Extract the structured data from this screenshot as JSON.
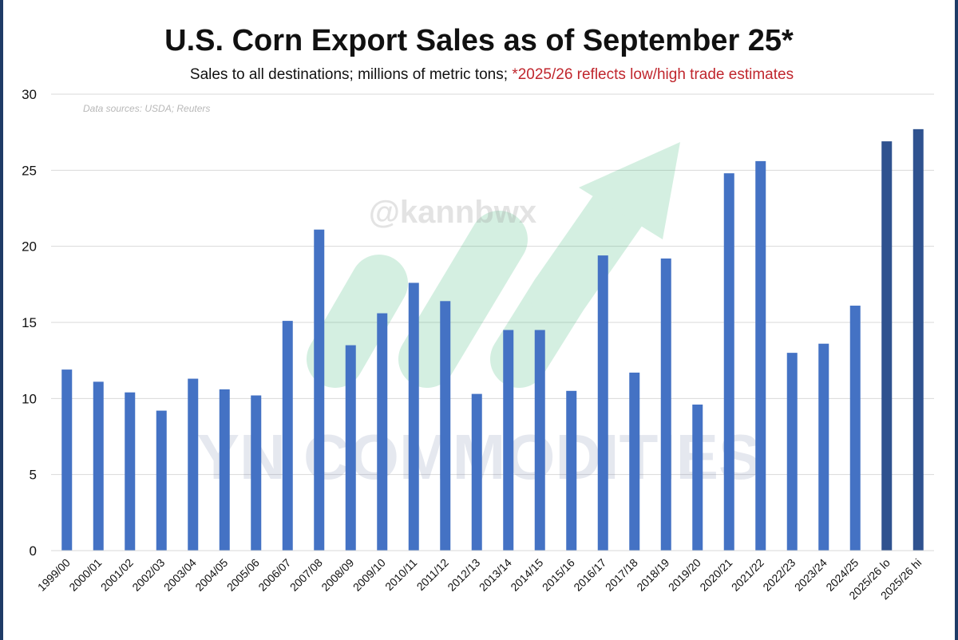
{
  "title": "U.S. Corn Export Sales as of September 25*",
  "subtitle_main": "Sales to all destinations; millions of metric tons;",
  "subtitle_note": "*2025/26 reflects low/high trade estimates",
  "source": "Data sources: USDA; Reuters",
  "watermark_handle": "@kannbwx",
  "watermark_brand": "YN COMMODITIES",
  "colors": {
    "bar": "#4472c4",
    "bar_estimate": "#2f528f",
    "note": "#c0262d",
    "grid": "#d9d9d9"
  },
  "chart_data": {
    "type": "bar",
    "title": "U.S. Corn Export Sales as of September 25*",
    "xlabel": "",
    "ylabel": "millions of metric tons",
    "ylim": [
      0,
      30
    ],
    "yticks": [
      0,
      5,
      10,
      15,
      20,
      25,
      30
    ],
    "grid": true,
    "categories": [
      "1999/00",
      "2000/01",
      "2001/02",
      "2002/03",
      "2003/04",
      "2004/05",
      "2005/06",
      "2006/07",
      "2007/08",
      "2008/09",
      "2009/10",
      "2010/11",
      "2011/12",
      "2012/13",
      "2013/14",
      "2014/15",
      "2015/16",
      "2016/17",
      "2017/18",
      "2018/19",
      "2019/20",
      "2020/21",
      "2021/22",
      "2022/23",
      "2023/24",
      "2024/25",
      "2025/26 lo",
      "2025/26 hi"
    ],
    "values": [
      11.9,
      11.1,
      10.4,
      9.2,
      11.3,
      10.6,
      10.2,
      15.1,
      21.1,
      13.5,
      15.6,
      17.6,
      16.4,
      10.3,
      14.5,
      14.5,
      10.5,
      19.4,
      11.7,
      19.2,
      9.6,
      24.8,
      25.6,
      13.0,
      13.6,
      16.1,
      26.9,
      27.7
    ],
    "estimate_categories": [
      "2025/26 lo",
      "2025/26 hi"
    ]
  }
}
